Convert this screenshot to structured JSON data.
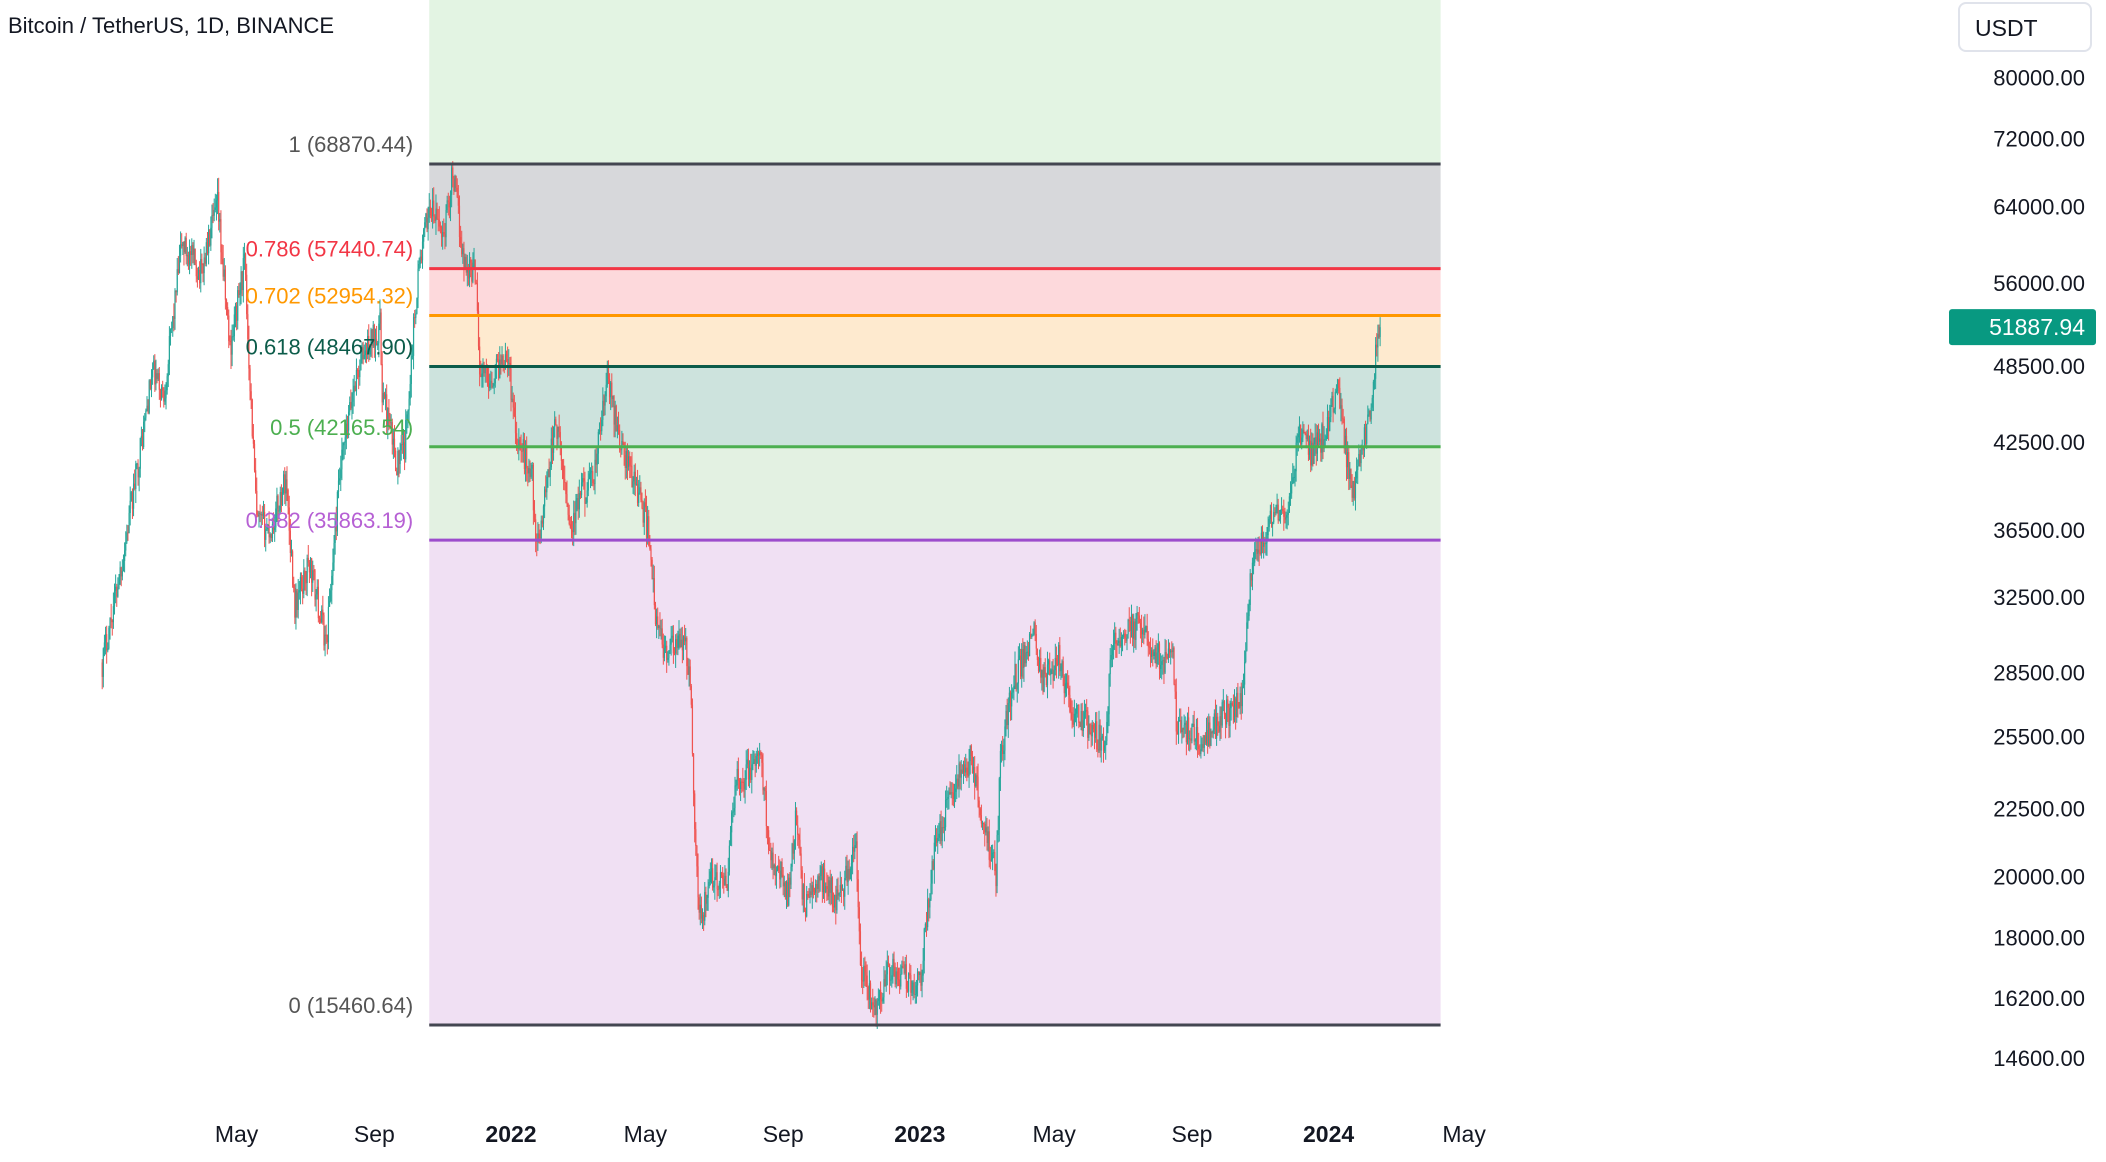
{
  "header": {
    "symbol": "Bitcoin / TetherUS, 1D, BINANCE",
    "currency_button": "USDT"
  },
  "colors": {
    "up": "#26a69a",
    "down": "#ef5350",
    "price_badge": "#089981",
    "text": "#131722"
  },
  "chart_data": {
    "type": "candlestick",
    "title": "Bitcoin / TetherUS, 1D, BINANCE",
    "currency": "USDT",
    "last_price": 51887.94,
    "y_scale": "log",
    "y_ticks": [
      80000.0,
      72000.0,
      64000.0,
      56000.0,
      48500.0,
      42500.0,
      36500.0,
      32500.0,
      28500.0,
      25500.0,
      22500.0,
      20000.0,
      18000.0,
      16200.0,
      14600.0
    ],
    "y_tick_labels": [
      "80000.00",
      "72000.00",
      "64000.00",
      "56000.00",
      "48500.00",
      "42500.00",
      "36500.00",
      "32500.00",
      "28500.00",
      "25500.00",
      "22500.00",
      "20000.00",
      "18000.00",
      "16200.00",
      "14600.00"
    ],
    "x_ticks": [
      {
        "label": "May",
        "date": "2021-05-01",
        "bold": false
      },
      {
        "label": "Sep",
        "date": "2021-09-01",
        "bold": false
      },
      {
        "label": "2022",
        "date": "2022-01-01",
        "bold": true
      },
      {
        "label": "May",
        "date": "2022-05-01",
        "bold": false
      },
      {
        "label": "Sep",
        "date": "2022-09-01",
        "bold": false
      },
      {
        "label": "2023",
        "date": "2023-01-01",
        "bold": true
      },
      {
        "label": "May",
        "date": "2023-05-01",
        "bold": false
      },
      {
        "label": "Sep",
        "date": "2023-09-01",
        "bold": false
      },
      {
        "label": "2024",
        "date": "2024-01-01",
        "bold": true
      },
      {
        "label": "May",
        "date": "2024-05-01",
        "bold": false
      }
    ],
    "fib": {
      "start_date": "2021-10-20",
      "end_date": "2024-04-10",
      "levels": [
        {
          "ratio": "1",
          "price": 68870.44,
          "label": "1 (68870.44)",
          "line_color": "#434651",
          "label_color": "#555555",
          "fill": "#e3f4e3"
        },
        {
          "ratio": "0.786",
          "price": 57440.74,
          "label": "0.786 (57440.74)",
          "line_color": "#f23645",
          "label_color": "#f23645",
          "fill": "#d7d8db"
        },
        {
          "ratio": "0.702",
          "price": 52954.32,
          "label": "0.702 (52954.32)",
          "line_color": "#ff9800",
          "label_color": "#ff9800",
          "fill": "#fdd9dc"
        },
        {
          "ratio": "0.618",
          "price": 48467.9,
          "label": "0.618 (48467.90)",
          "line_color": "#0c5c4a",
          "label_color": "#0c5c4a",
          "fill": "#feeacf"
        },
        {
          "ratio": "0.5",
          "price": 42165.54,
          "label": "0.5 (42165.54)",
          "line_color": "#4caf50",
          "label_color": "#4caf50",
          "fill": "#cde3dd"
        },
        {
          "ratio": "0.382",
          "price": 35863.19,
          "label": "0.382 (35863.19)",
          "line_color": "#9c4dcc",
          "label_color": "#b660d4",
          "fill": "#e3f1e2"
        },
        {
          "ratio": "0",
          "price": 15460.64,
          "label": "0 (15460.64)",
          "line_color": "#434651",
          "label_color": "#555555",
          "fill": "#f0e0f3"
        }
      ]
    },
    "price_path": [
      [
        "2021-01-01",
        29000
      ],
      [
        "2021-01-20",
        35000
      ],
      [
        "2021-02-15",
        48000
      ],
      [
        "2021-02-25",
        46000
      ],
      [
        "2021-03-13",
        60000
      ],
      [
        "2021-03-30",
        57000
      ],
      [
        "2021-04-14",
        64000
      ],
      [
        "2021-04-25",
        50000
      ],
      [
        "2021-05-08",
        58000
      ],
      [
        "2021-05-19",
        37000
      ],
      [
        "2021-06-01",
        36500
      ],
      [
        "2021-06-14",
        40000
      ],
      [
        "2021-06-22",
        32000
      ],
      [
        "2021-07-05",
        34500
      ],
      [
        "2021-07-20",
        30000
      ],
      [
        "2021-08-01",
        40000
      ],
      [
        "2021-08-14",
        47000
      ],
      [
        "2021-08-22",
        49500
      ],
      [
        "2021-09-06",
        52000
      ],
      [
        "2021-09-08",
        46500
      ],
      [
        "2021-09-21",
        41000
      ],
      [
        "2021-09-28",
        42000
      ],
      [
        "2021-10-03",
        48000
      ],
      [
        "2021-10-10",
        57000
      ],
      [
        "2021-10-20",
        64000
      ],
      [
        "2021-11-02",
        61000
      ],
      [
        "2021-11-10",
        68000
      ],
      [
        "2021-11-20",
        58000
      ],
      [
        "2021-12-01",
        57000
      ],
      [
        "2021-12-04",
        48000
      ],
      [
        "2021-12-15",
        47500
      ],
      [
        "2021-12-28",
        50000
      ],
      [
        "2022-01-06",
        43000
      ],
      [
        "2022-01-20",
        40000
      ],
      [
        "2022-01-24",
        35000
      ],
      [
        "2022-02-05",
        41500
      ],
      [
        "2022-02-10",
        44000
      ],
      [
        "2022-02-24",
        36500
      ],
      [
        "2022-03-05",
        39000
      ],
      [
        "2022-03-15",
        39500
      ],
      [
        "2022-03-28",
        47500
      ],
      [
        "2022-04-10",
        42000
      ],
      [
        "2022-04-25",
        39000
      ],
      [
        "2022-05-05",
        36000
      ],
      [
        "2022-05-10",
        31000
      ],
      [
        "2022-05-20",
        29500
      ],
      [
        "2022-06-05",
        30000
      ],
      [
        "2022-06-10",
        28000
      ],
      [
        "2022-06-15",
        21000
      ],
      [
        "2022-06-18",
        18500
      ],
      [
        "2022-06-30",
        20000
      ],
      [
        "2022-07-12",
        19500
      ],
      [
        "2022-07-20",
        23500
      ],
      [
        "2022-08-12",
        24500
      ],
      [
        "2022-08-20",
        21000
      ],
      [
        "2022-09-05",
        19500
      ],
      [
        "2022-09-12",
        22000
      ],
      [
        "2022-09-20",
        19000
      ],
      [
        "2022-10-05",
        20000
      ],
      [
        "2022-10-20",
        19200
      ],
      [
        "2022-11-05",
        21000
      ],
      [
        "2022-11-09",
        17000
      ],
      [
        "2022-11-21",
        15900
      ],
      [
        "2022-12-05",
        17000
      ],
      [
        "2022-12-20",
        16800
      ],
      [
        "2023-01-01",
        16600
      ],
      [
        "2023-01-14",
        21000
      ],
      [
        "2023-02-01",
        23500
      ],
      [
        "2023-02-15",
        24500
      ],
      [
        "2023-03-10",
        20000
      ],
      [
        "2023-03-14",
        24500
      ],
      [
        "2023-03-25",
        28000
      ],
      [
        "2023-04-14",
        30500
      ],
      [
        "2023-04-20",
        28000
      ],
      [
        "2023-05-05",
        29200
      ],
      [
        "2023-05-15",
        26800
      ],
      [
        "2023-06-15",
        25200
      ],
      [
        "2023-06-22",
        30000
      ],
      [
        "2023-07-14",
        31000
      ],
      [
        "2023-08-01",
        29300
      ],
      [
        "2023-08-15",
        29100
      ],
      [
        "2023-08-18",
        26200
      ],
      [
        "2023-09-11",
        25100
      ],
      [
        "2023-09-25",
        26300
      ],
      [
        "2023-10-15",
        27000
      ],
      [
        "2023-10-24",
        34000
      ],
      [
        "2023-11-10",
        37000
      ],
      [
        "2023-11-28",
        38000
      ],
      [
        "2023-12-05",
        43500
      ],
      [
        "2023-12-18",
        41500
      ],
      [
        "2024-01-01",
        44000
      ],
      [
        "2024-01-10",
        47000
      ],
      [
        "2024-01-15",
        42500
      ],
      [
        "2024-01-23",
        39000
      ],
      [
        "2024-02-01",
        42800
      ],
      [
        "2024-02-08",
        45000
      ],
      [
        "2024-02-14",
        51500
      ],
      [
        "2024-02-16",
        51887.94
      ]
    ]
  }
}
